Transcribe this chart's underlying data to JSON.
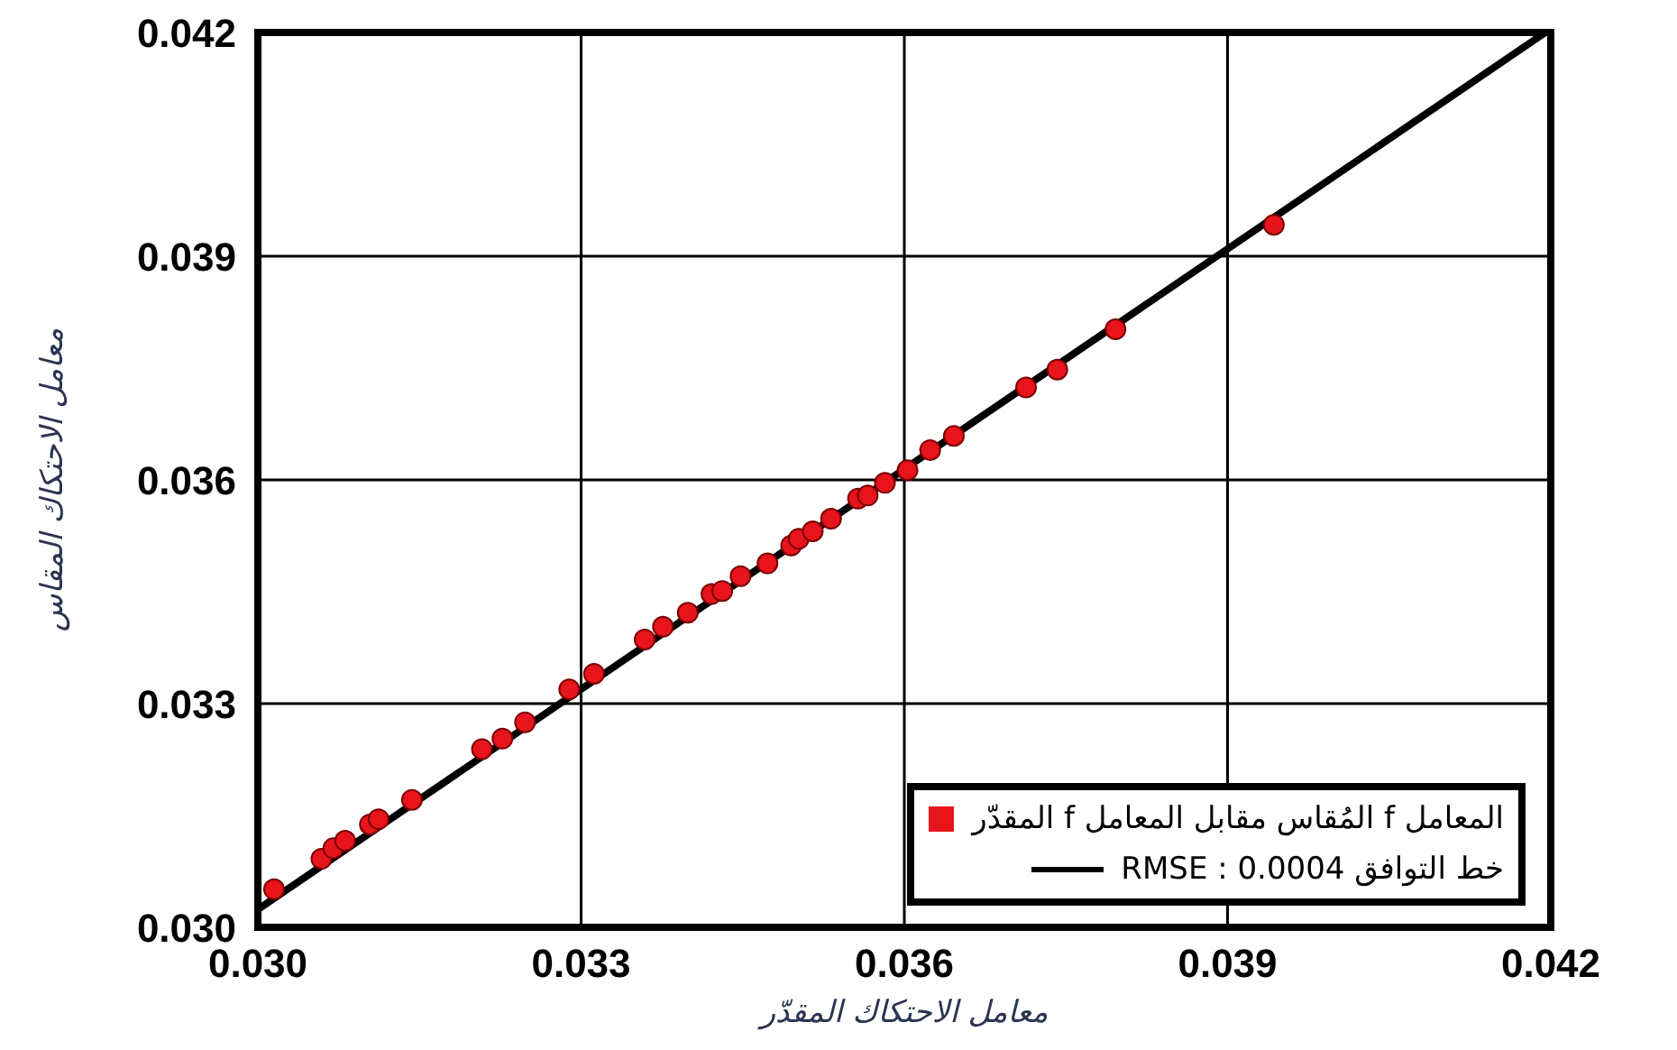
{
  "chart_data": {
    "type": "scatter",
    "xlabel": "معامل الاحتكاك المقدّر",
    "ylabel": "معامل الاحتكاك المقاس",
    "xlim": [
      0.03,
      0.042
    ],
    "xticks": [
      {
        "value": 0.03,
        "label": "0.030"
      },
      0.033,
      0.036,
      0.039,
      0.042
    ],
    "ylim": [
      0.03,
      0.042
    ],
    "yticks": [
      {
        "value": 0.03,
        "label": "0.030"
      },
      0.033,
      0.036,
      0.039,
      0.042
    ],
    "grid": true,
    "legend": "bottom right",
    "series": [
      {
        "type": "scatter",
        "marker": "circle",
        "name": "المعامل f المُقاس مقابل المعامل f المقدّر",
        "color": "#e8141c",
        "x": [
          0.03015,
          0.03059,
          0.0307,
          0.03081,
          0.03104,
          0.03112,
          0.03143,
          0.03208,
          0.03227,
          0.03248,
          0.03289,
          0.03312,
          0.03359,
          0.03376,
          0.03399,
          0.03421,
          0.03431,
          0.03448,
          0.03473,
          0.03495,
          0.03502,
          0.03515,
          0.03532,
          0.03557,
          0.03566,
          0.03582,
          0.03603,
          0.03624,
          0.03646,
          0.03713,
          0.03742,
          0.03796,
          0.03943
        ],
        "values": [
          0.03051,
          0.03092,
          0.03106,
          0.03116,
          0.03138,
          0.03145,
          0.03171,
          0.03239,
          0.03253,
          0.03275,
          0.03319,
          0.0334,
          0.03386,
          0.03403,
          0.03422,
          0.03447,
          0.03451,
          0.03471,
          0.03488,
          0.03512,
          0.03521,
          0.03531,
          0.03548,
          0.03575,
          0.03579,
          0.03596,
          0.03613,
          0.0364,
          0.03659,
          0.03724,
          0.03748,
          0.03802,
          0.03942
        ]
      },
      {
        "type": "line",
        "name": "خط التوافق RMSE : 0.0004",
        "color": "#000000",
        "line_style": "solid",
        "x": [
          0.03,
          0.04195
        ],
        "values": [
          0.03024,
          0.042
        ]
      }
    ]
  }
}
